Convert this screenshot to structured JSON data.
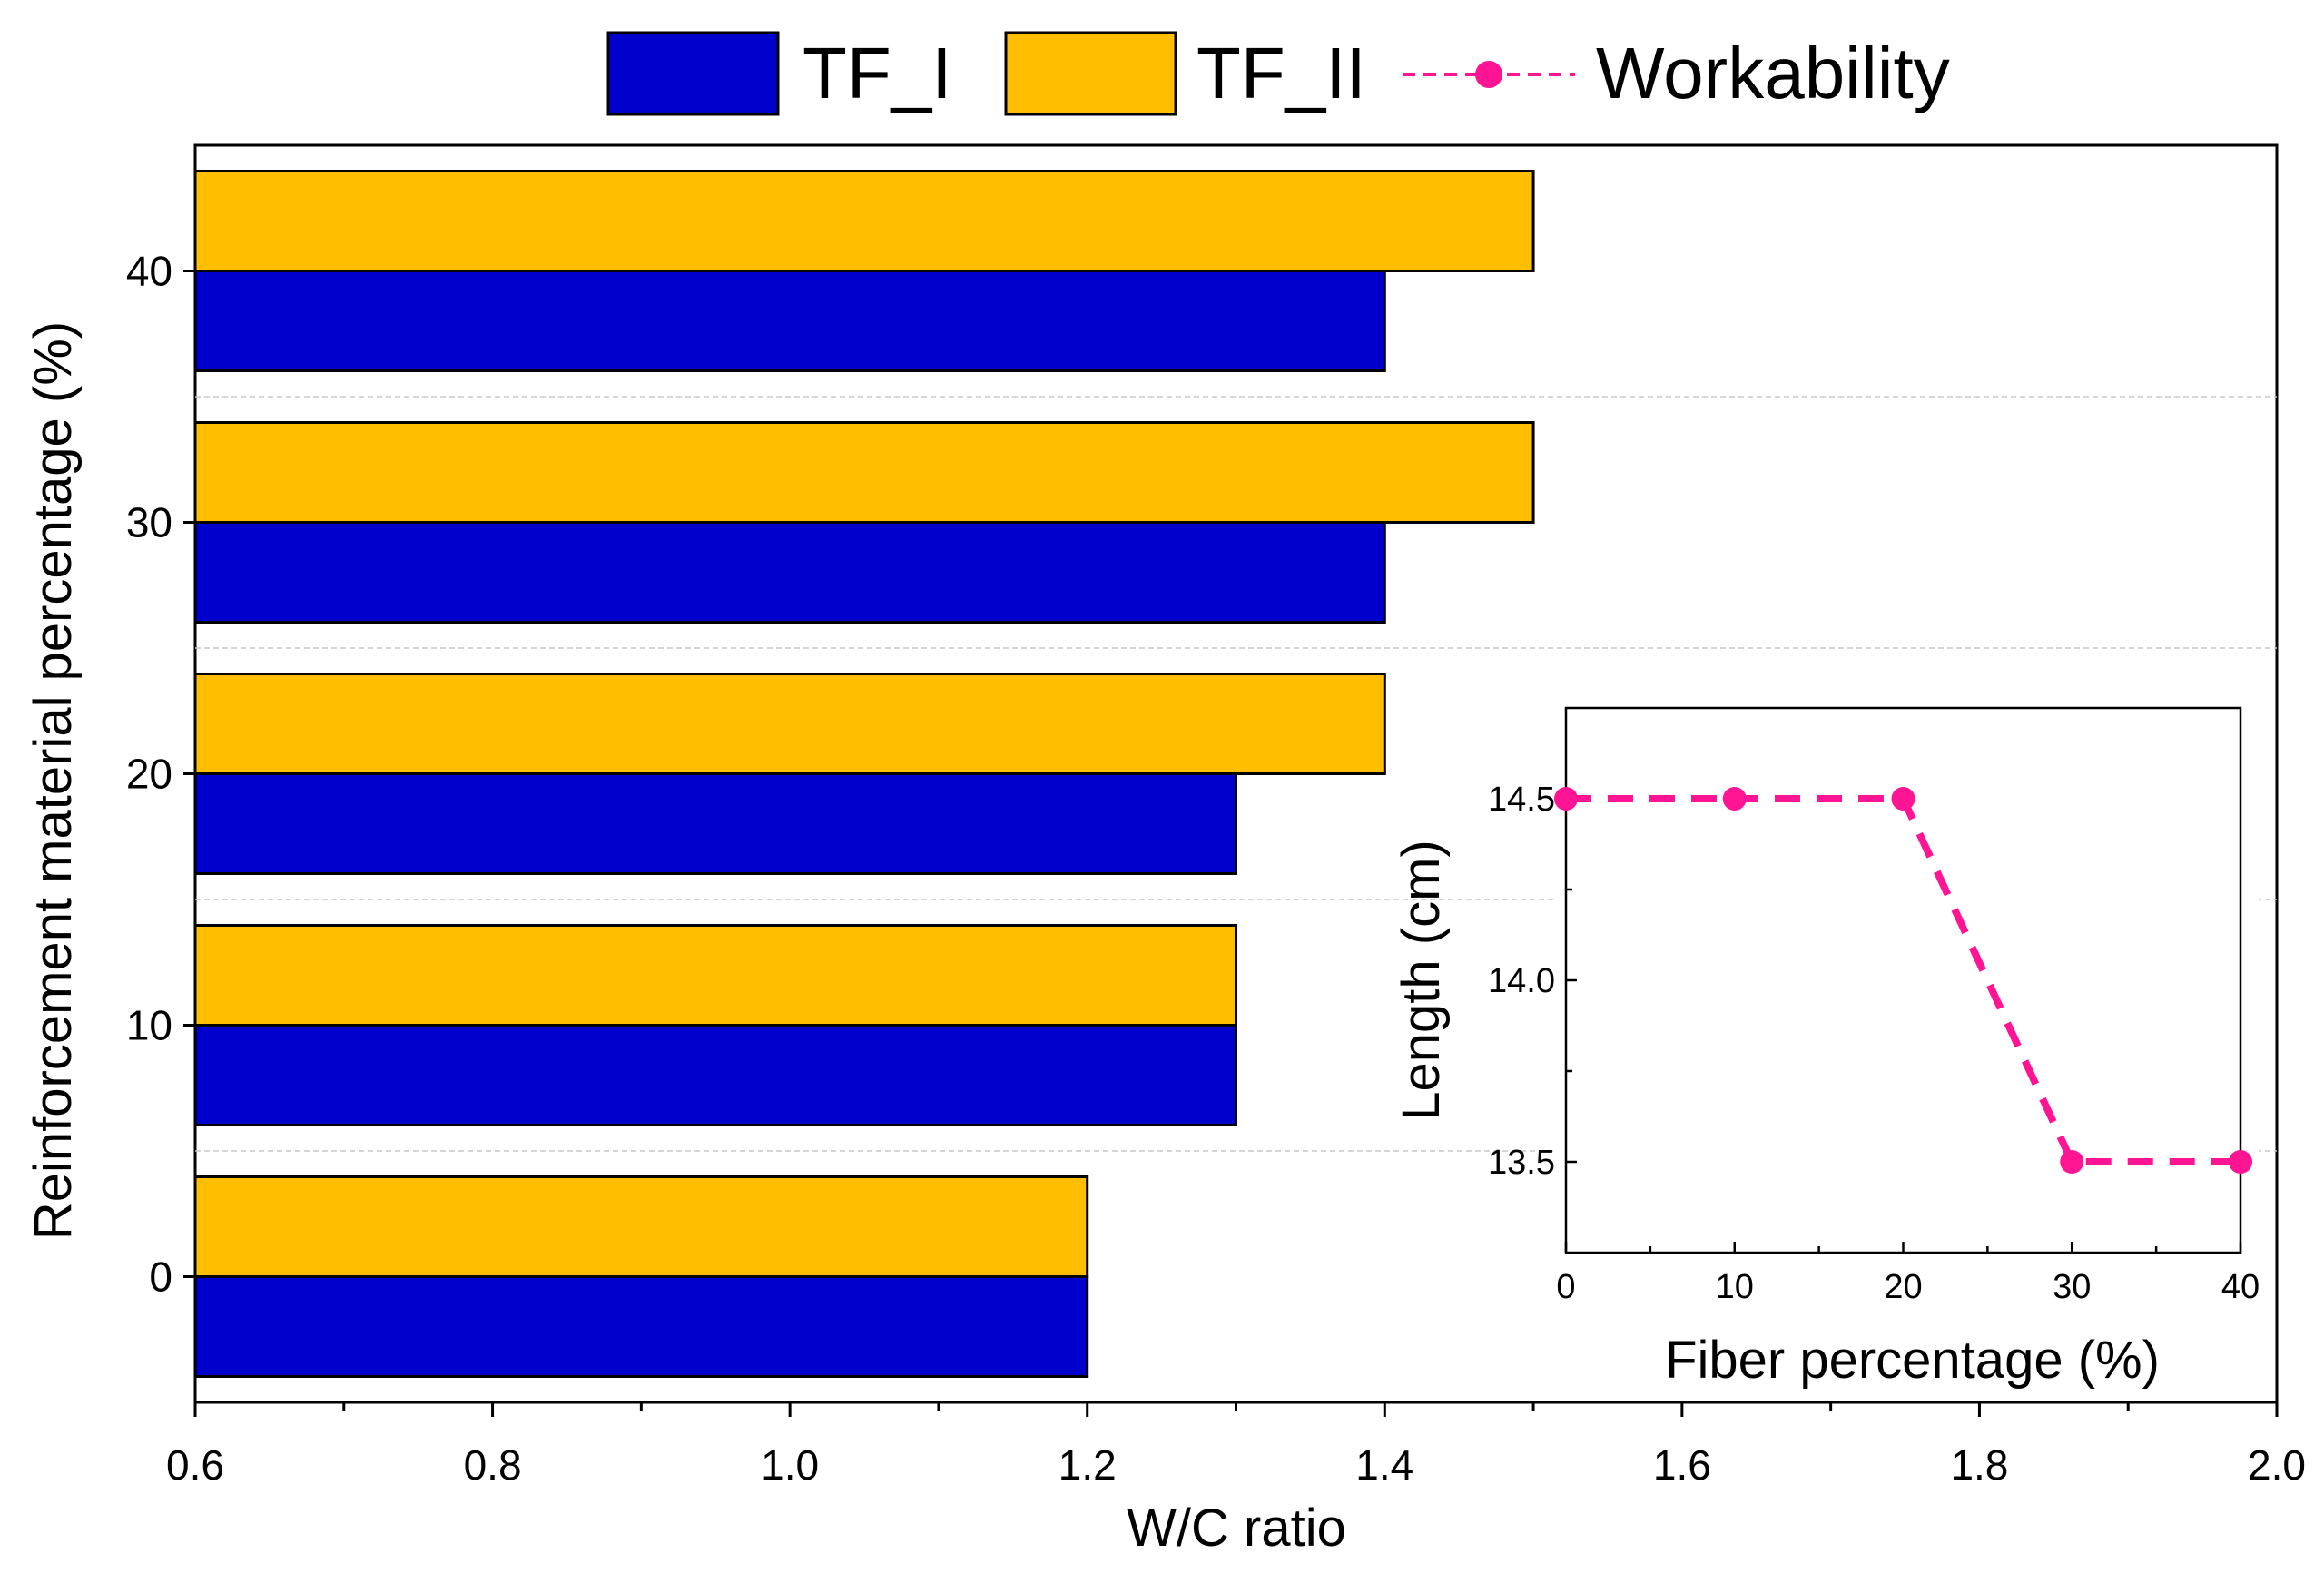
{
  "chart_data": [
    {
      "type": "bar",
      "orientation": "horizontal",
      "title": "",
      "xlabel": "W/C ratio",
      "ylabel": "Reinforcement material percentage (%)",
      "xlim": [
        0.6,
        2.0
      ],
      "xticks": [
        0.6,
        0.8,
        1.0,
        1.2,
        1.4,
        1.6,
        1.8,
        2.0
      ],
      "xtick_labels": [
        "0.6",
        "0.8",
        "1.0",
        "1.2",
        "1.4",
        "1.6",
        "1.8",
        "2.0"
      ],
      "categories": [
        "0",
        "10",
        "20",
        "30",
        "40"
      ],
      "series": [
        {
          "name": "TF_I",
          "color": "#0000CC",
          "values": [
            1.2,
            1.3,
            1.3,
            1.4,
            1.4
          ]
        },
        {
          "name": "TF_II",
          "color": "#FFBF00",
          "values": [
            1.2,
            1.3,
            1.4,
            1.5,
            1.5
          ]
        }
      ],
      "grid": "horizontal dashed separators between categories",
      "legend_position": "top-center"
    },
    {
      "type": "line",
      "inset": true,
      "xlabel": "Fiber percentage (%)",
      "ylabel": "Length (cm)",
      "xlim": [
        0,
        40
      ],
      "ylim": [
        13.25,
        14.75
      ],
      "xticks": [
        0,
        10,
        20,
        30,
        40
      ],
      "xtick_labels": [
        "0",
        "10",
        "20",
        "30",
        "40"
      ],
      "yticks": [
        13.5,
        14.0,
        14.5
      ],
      "ytick_labels": [
        "13.5",
        "14.0",
        "14.5"
      ],
      "series": [
        {
          "name": "Workability",
          "color": "#FF1493",
          "x": [
            0,
            10,
            20,
            30,
            40
          ],
          "y": [
            14.5,
            14.5,
            14.5,
            13.5,
            13.5
          ]
        }
      ]
    }
  ],
  "legend": {
    "items": [
      {
        "label": "TF_I",
        "kind": "bar",
        "color": "#0000CC"
      },
      {
        "label": "TF_II",
        "kind": "bar",
        "color": "#FFBF00"
      },
      {
        "label": "Workability",
        "kind": "line-marker",
        "color": "#FF1493"
      }
    ]
  }
}
